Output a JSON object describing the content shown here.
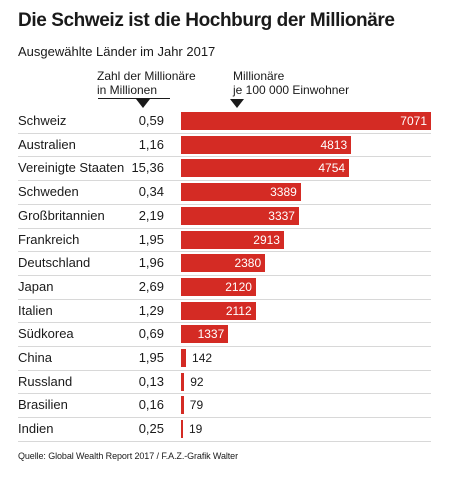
{
  "title": "Die Schweiz ist die Hochburg der Millionäre",
  "subtitle": "Ausgewählte Länder im Jahr 2017",
  "col_millionaires": [
    "Zahl der Millionäre",
    "in Millionen"
  ],
  "col_density": [
    "Millionäre",
    "je 100 000 Einwohner"
  ],
  "source": "Quelle: Global Wealth Report 2017 / F.A.Z.-Grafik Walter",
  "chart_data": {
    "type": "bar",
    "orientation": "horizontal",
    "title": "Die Schweiz ist die Hochburg der Millionäre",
    "subtitle": "Ausgewählte Länder im Jahr 2017",
    "categories": [
      "Schweiz",
      "Australien",
      "Vereinigte Staaten",
      "Schweden",
      "Großbritannien",
      "Frankreich",
      "Deutschland",
      "Japan",
      "Italien",
      "Südkorea",
      "China",
      "Russland",
      "Brasilien",
      "Indien"
    ],
    "millionaires_labels": [
      "0,59",
      "1,16",
      "15,36",
      "0,34",
      "2,19",
      "1,95",
      "1,96",
      "2,69",
      "1,29",
      "0,69",
      "1,95",
      "0,13",
      "0,16",
      "0,25"
    ],
    "millionaires": [
      0.59,
      1.16,
      15.36,
      0.34,
      2.19,
      1.95,
      1.96,
      2.69,
      1.29,
      0.69,
      1.95,
      0.13,
      0.16,
      0.25
    ],
    "values": [
      7071,
      4813,
      4754,
      3389,
      3337,
      2913,
      2380,
      2120,
      2112,
      1337,
      142,
      92,
      79,
      19
    ],
    "bar_color": "#d42b24",
    "xlim": [
      0,
      7071
    ]
  }
}
